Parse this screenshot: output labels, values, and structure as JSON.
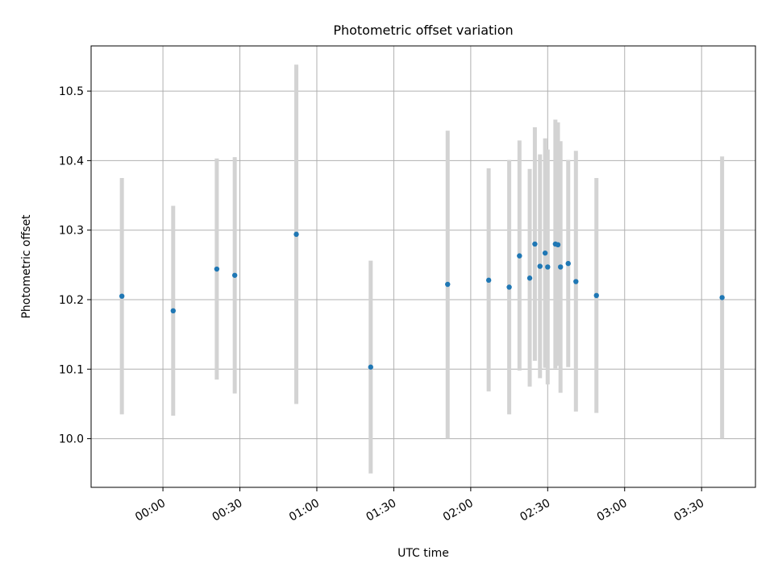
{
  "chart_data": {
    "type": "scatter",
    "title": "Photometric offset variation",
    "xlabel": "UTC time",
    "ylabel": "Photometric offset",
    "x_axis": "time",
    "xlim": [
      "23:32",
      "03:51"
    ],
    "ylim": [
      9.93,
      10.565
    ],
    "x_ticks": [
      "00:00",
      "00:30",
      "01:00",
      "01:30",
      "02:00",
      "02:30",
      "03:00",
      "03:30"
    ],
    "y_ticks": [
      10.0,
      10.1,
      10.2,
      10.3,
      10.4,
      10.5
    ],
    "y_tick_labels": [
      "10.0",
      "10.1",
      "10.2",
      "10.3",
      "10.4",
      "10.5"
    ],
    "grid": true,
    "colors": {
      "point": "#1f77b4",
      "errorbar": "#d3d3d3"
    },
    "points": [
      {
        "x": "23:44",
        "y": 10.205,
        "yerr_low": 10.035,
        "yerr_high": 10.375
      },
      {
        "x": "00:04",
        "y": 10.184,
        "yerr_low": 10.033,
        "yerr_high": 10.335
      },
      {
        "x": "00:21",
        "y": 10.244,
        "yerr_low": 10.085,
        "yerr_high": 10.403
      },
      {
        "x": "00:28",
        "y": 10.235,
        "yerr_low": 10.065,
        "yerr_high": 10.405
      },
      {
        "x": "00:52",
        "y": 10.294,
        "yerr_low": 10.05,
        "yerr_high": 10.538
      },
      {
        "x": "01:21",
        "y": 10.103,
        "yerr_low": 9.95,
        "yerr_high": 10.256
      },
      {
        "x": "01:51",
        "y": 10.222,
        "yerr_low": 10.0,
        "yerr_high": 10.443
      },
      {
        "x": "02:07",
        "y": 10.228,
        "yerr_low": 10.068,
        "yerr_high": 10.389
      },
      {
        "x": "02:15",
        "y": 10.218,
        "yerr_low": 10.035,
        "yerr_high": 10.401
      },
      {
        "x": "02:19",
        "y": 10.263,
        "yerr_low": 10.098,
        "yerr_high": 10.429
      },
      {
        "x": "02:23",
        "y": 10.231,
        "yerr_low": 10.075,
        "yerr_high": 10.388
      },
      {
        "x": "02:25",
        "y": 10.28,
        "yerr_low": 10.112,
        "yerr_high": 10.448
      },
      {
        "x": "02:27",
        "y": 10.248,
        "yerr_low": 10.087,
        "yerr_high": 10.409
      },
      {
        "x": "02:29",
        "y": 10.267,
        "yerr_low": 10.102,
        "yerr_high": 10.432
      },
      {
        "x": "02:30",
        "y": 10.247,
        "yerr_low": 10.078,
        "yerr_high": 10.416
      },
      {
        "x": "02:33",
        "y": 10.28,
        "yerr_low": 10.101,
        "yerr_high": 10.459
      },
      {
        "x": "02:34",
        "y": 10.279,
        "yerr_low": 10.105,
        "yerr_high": 10.455
      },
      {
        "x": "02:35",
        "y": 10.247,
        "yerr_low": 10.066,
        "yerr_high": 10.428
      },
      {
        "x": "02:38",
        "y": 10.252,
        "yerr_low": 10.103,
        "yerr_high": 10.401
      },
      {
        "x": "02:41",
        "y": 10.226,
        "yerr_low": 10.039,
        "yerr_high": 10.414
      },
      {
        "x": "02:49",
        "y": 10.206,
        "yerr_low": 10.037,
        "yerr_high": 10.375
      },
      {
        "x": "03:38",
        "y": 10.203,
        "yerr_low": 10.0,
        "yerr_high": 10.406
      }
    ]
  }
}
